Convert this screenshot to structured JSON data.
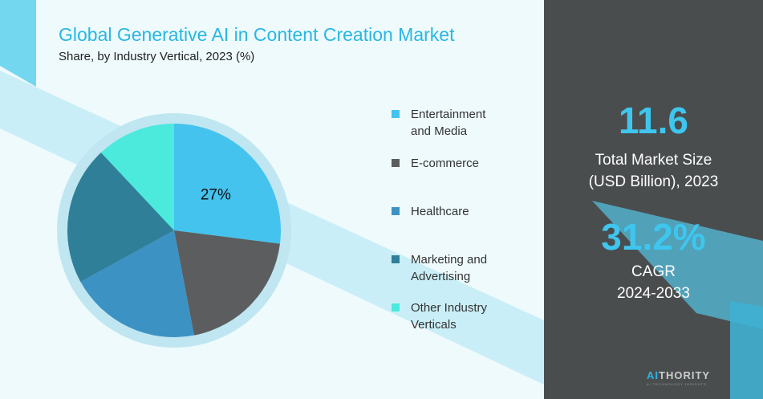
{
  "title": "Global Generative AI in Content Creation Market",
  "subtitle": "Share, by Industry Vertical, 2023 (%)",
  "colors": {
    "entertainment": "#44c3ee",
    "ecommerce": "#5b5d5e",
    "healthcare": "#3d92c4",
    "marketing": "#2f7f99",
    "other": "#4ce9dd",
    "accent": "#3ec6ee",
    "panel": "#4a4d4e"
  },
  "chart_data": {
    "type": "pie",
    "categories": [
      "Entertainment and Media",
      "E-commerce",
      "Healthcare",
      "Marketing and Advertising",
      "Other Industry Verticals"
    ],
    "values": [
      27,
      20,
      20,
      21,
      12
    ],
    "data_labels": [
      "27%",
      "",
      "",
      "",
      ""
    ],
    "legend_position": "right"
  },
  "legend": [
    {
      "lines": [
        "Entertainment",
        "and Media"
      ],
      "color": "#44c3ee"
    },
    {
      "lines": [
        "E-commerce"
      ],
      "color": "#5b5d5e"
    },
    {
      "lines": [
        "Healthcare"
      ],
      "color": "#3d92c4"
    },
    {
      "lines": [
        "Marketing and",
        "Advertising"
      ],
      "color": "#2f7f99"
    },
    {
      "lines": [
        "Other Industry",
        "Verticals"
      ],
      "color": "#4ce9dd"
    }
  ],
  "stats": {
    "market_size_value": "11.6",
    "market_size_label_1": "Total Market Size",
    "market_size_label_2": "(USD Billion), 2023",
    "cagr_value": "31.2%",
    "cagr_label_1": "CAGR",
    "cagr_label_2": "2024-2033"
  },
  "logo": {
    "accent": "AI",
    "rest": "THORITY",
    "tagline": "AI TECHNOLOGY INSIGHTS"
  }
}
